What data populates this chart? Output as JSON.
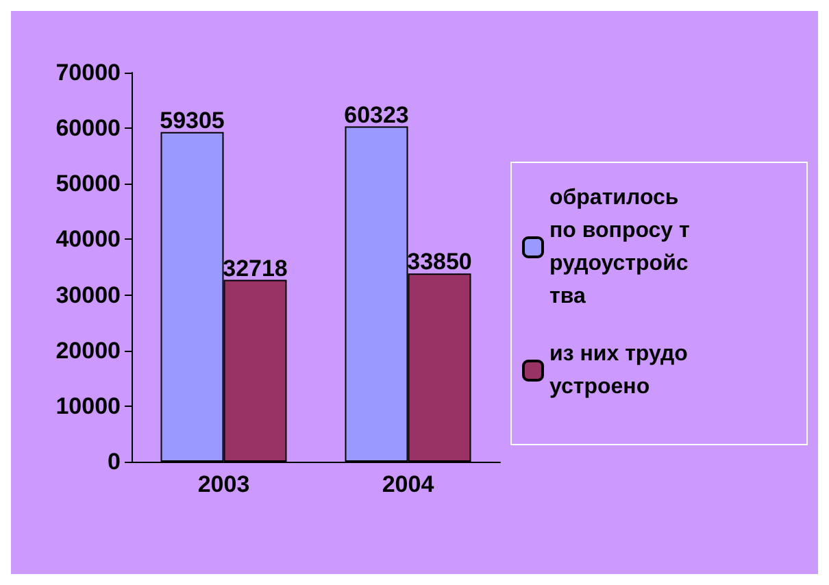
{
  "chart_data": {
    "type": "bar",
    "categories": [
      "2003",
      "2004"
    ],
    "series": [
      {
        "name": "обратилось по вопросу трудоустройства",
        "color": "#9999ff",
        "values": [
          59305,
          60323
        ]
      },
      {
        "name": "из них трудоустроено",
        "color": "#993366",
        "values": [
          32718,
          33850
        ]
      }
    ],
    "ylim": [
      0,
      70000
    ],
    "yticks": [
      0,
      10000,
      20000,
      30000,
      40000,
      50000,
      60000,
      70000
    ],
    "data_labels": true,
    "legend": "right",
    "grid": false
  }
}
